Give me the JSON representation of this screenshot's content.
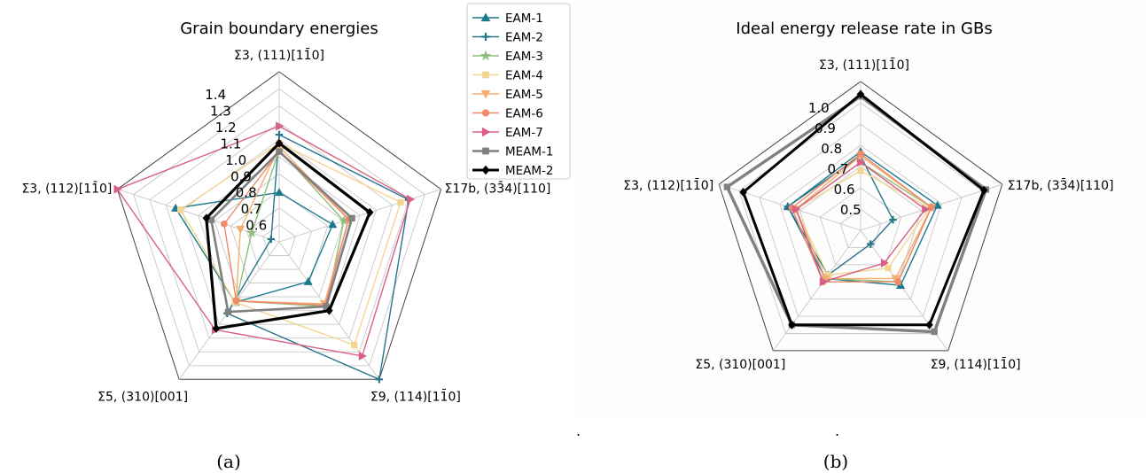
{
  "figure": {
    "captions": [
      "(a)",
      "(b)"
    ],
    "dots": [
      ".",
      "."
    ]
  },
  "legend": {
    "entries": [
      {
        "name": "EAM-1",
        "color": "#1b7b8e",
        "marker": "triangle-up"
      },
      {
        "name": "EAM-2",
        "color": "#27768a",
        "marker": "plus"
      },
      {
        "name": "EAM-3",
        "color": "#8fbf7a",
        "marker": "star"
      },
      {
        "name": "EAM-4",
        "color": "#f2d691",
        "marker": "square"
      },
      {
        "name": "EAM-5",
        "color": "#f5ae72",
        "marker": "triangle-down"
      },
      {
        "name": "EAM-6",
        "color": "#ee8a6b",
        "marker": "circle"
      },
      {
        "name": "EAM-7",
        "color": "#d95f86",
        "marker": "triangle-right"
      },
      {
        "name": "MEAM-1",
        "color": "#808080",
        "marker": "square"
      },
      {
        "name": "MEAM-2",
        "color": "#000000",
        "marker": "diamond"
      }
    ]
  },
  "chart_data": [
    {
      "type": "radar",
      "title": "Grain boundary energies",
      "categories": [
        "Σ3, (111)[11̄0]",
        "Σ17b, (33̄4)[110]",
        "Σ9, (114)[11̄0]",
        "Σ5, (310)[001]",
        "Σ3, (112)[11̄0]"
      ],
      "rlim": [
        0.5,
        1.5
      ],
      "rticks": [
        0.6,
        0.7,
        0.8,
        0.9,
        1.0,
        1.1,
        1.2,
        1.3,
        1.4
      ],
      "rtick_labels": [
        "0.6",
        "0.7",
        "0.8",
        "0.9",
        "1.0",
        "1.1",
        "1.2",
        "1.3",
        "1.4"
      ],
      "grid": true,
      "series": [
        {
          "name": "EAM-1",
          "values": [
            0.79,
            0.83,
            0.79,
            0.94,
            1.14
          ]
        },
        {
          "name": "EAM-2",
          "values": [
            1.13,
            1.3,
            1.5,
            1.02,
            0.55
          ]
        },
        {
          "name": "EAM-3",
          "values": [
            1.04,
            0.9,
            0.97,
            0.93,
            0.67
          ]
        },
        {
          "name": "EAM-4",
          "values": [
            1.08,
            1.25,
            1.25,
            0.94,
            1.11
          ]
        },
        {
          "name": "EAM-5",
          "values": [
            1.06,
            0.93,
            0.95,
            0.93,
            0.74
          ]
        },
        {
          "name": "EAM-6",
          "values": [
            1.03,
            0.93,
            0.96,
            0.93,
            0.84
          ]
        },
        {
          "name": "EAM-7",
          "values": [
            1.18,
            1.31,
            1.33,
            1.14,
            1.5
          ]
        },
        {
          "name": "MEAM-1",
          "values": [
            1.03,
            0.95,
            0.97,
            1.01,
            0.92
          ]
        },
        {
          "name": "MEAM-2",
          "values": [
            1.08,
            1.06,
            1.0,
            1.13,
            0.95
          ]
        }
      ]
    },
    {
      "type": "radar",
      "title": "Ideal energy release rate in GBs",
      "categories": [
        "Σ3, (111)[11̄0]",
        "Σ17b, (33̄4)[110]",
        "Σ9, (114)[11̄0]",
        "Σ5, (310)[001]",
        "Σ3, (112)[11̄0]"
      ],
      "rlim": [
        0.4,
        1.1
      ],
      "rticks": [
        0.5,
        0.6,
        0.7,
        0.8,
        0.9,
        1.0
      ],
      "rtick_labels": [
        "0.5",
        "0.6",
        "0.7",
        "0.8",
        "0.9",
        "1.0"
      ],
      "grid": true,
      "series": [
        {
          "name": "EAM-1",
          "values": [
            0.77,
            0.78,
            0.72,
            0.68,
            0.76
          ]
        },
        {
          "name": "EAM-2",
          "values": [
            0.75,
            0.56,
            0.48,
            0.66,
            0.76
          ]
        },
        {
          "name": "EAM-3",
          "values": [
            0.72,
            0.75,
            0.7,
            0.68,
            0.72
          ]
        },
        {
          "name": "EAM-4",
          "values": [
            0.68,
            0.74,
            0.62,
            0.66,
            0.72
          ]
        },
        {
          "name": "EAM-5",
          "values": [
            0.75,
            0.75,
            0.68,
            0.68,
            0.72
          ]
        },
        {
          "name": "EAM-6",
          "values": [
            0.76,
            0.75,
            0.7,
            0.7,
            0.74
          ]
        },
        {
          "name": "EAM-7",
          "values": [
            0.72,
            0.72,
            0.59,
            0.7,
            0.72
          ]
        },
        {
          "name": "MEAM-1",
          "values": [
            1.03,
            1.02,
            0.99,
            0.95,
            1.06
          ]
        },
        {
          "name": "MEAM-2",
          "values": [
            1.04,
            1.01,
            0.95,
            0.95,
            0.98
          ]
        }
      ]
    }
  ]
}
